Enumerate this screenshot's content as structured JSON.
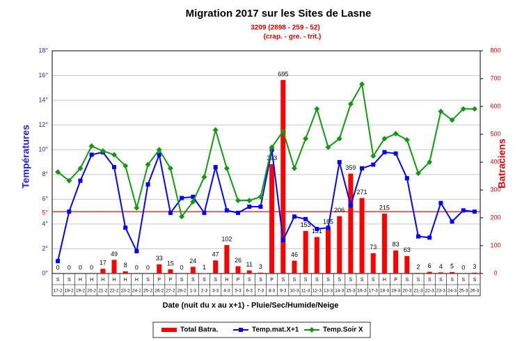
{
  "chart_data": {
    "type": "bar_line",
    "title": "Migration 2017 sur les Sites de Lasne",
    "subtitle": "3209 (2898 - 259 - 52)",
    "subtitle2": "(crap. -  gre. - trit.)",
    "y_label": "Températures",
    "y2_label": "Batraciens",
    "x_label": "Date (nuit du x au x+1) - Pluie/Sec/Humide/Neige",
    "categories": [
      "17-2",
      "18-2",
      "19-2",
      "20-2",
      "21-2",
      "22-2",
      "23-2",
      "24-2",
      "25-2",
      "26-2",
      "27-2",
      "28-2",
      "1-3",
      "2-3",
      "3-3",
      "4-3",
      "5-3",
      "6-3",
      "7-3",
      "8-3",
      "9-3",
      "10-3",
      "11-3",
      "12-3",
      "13-3",
      "14-3",
      "15-3",
      "16-3",
      "17-3",
      "18-3",
      "19-3",
      "20-3",
      "21-3",
      "22-3",
      "23-3",
      "24-3",
      "25-3",
      "26-3"
    ],
    "weather": [
      "S",
      "S",
      "H",
      "H",
      "H",
      "H",
      "H",
      "H",
      "S",
      "P",
      "P",
      "S",
      "S",
      "S",
      "S",
      "H",
      "P",
      "S",
      "S",
      "P",
      "S",
      "S",
      "S",
      "S",
      "S",
      "S",
      "S",
      "S",
      "S",
      "H",
      "P",
      "S",
      "S",
      "S",
      "S",
      "S",
      "S",
      "S"
    ],
    "series": [
      {
        "name": "Total Batra.",
        "kind": "bar",
        "axis": "y2",
        "color": "#ff0000",
        "values": [
          0,
          0,
          0,
          0,
          17,
          49,
          8,
          0,
          0,
          33,
          15,
          0,
          24,
          1,
          47,
          102,
          26,
          11,
          3,
          393,
          695,
          46,
          153,
          131,
          165,
          206,
          359,
          271,
          73,
          215,
          83,
          63,
          2,
          6,
          4,
          5,
          0,
          3
        ]
      },
      {
        "name": "Temp.mat.X+1",
        "kind": "line",
        "axis": "y",
        "color": "#0000ff",
        "marker": "square",
        "values": [
          1,
          5,
          7.5,
          9.6,
          9.8,
          8.6,
          3.7,
          1.8,
          7.2,
          9.6,
          4.9,
          6.1,
          6.2,
          4.9,
          8.6,
          5.1,
          4.9,
          5.4,
          5.4,
          10,
          2.7,
          4.6,
          4.4,
          3.6,
          3.7,
          9,
          5.5,
          8.5,
          8.8,
          9.8,
          9.7,
          7.7,
          3,
          2.9,
          5.7,
          4.2,
          5.1,
          5
        ]
      },
      {
        "name": "Temp.Soir X",
        "kind": "line",
        "axis": "y",
        "color": "#119911",
        "marker": "diamond",
        "values": [
          8.2,
          7.5,
          8.5,
          10.3,
          9.9,
          9.6,
          8.7,
          5.3,
          8.8,
          10,
          8.5,
          4.6,
          5.8,
          7.8,
          11.6,
          8.5,
          5.9,
          5.9,
          6.2,
          10.2,
          11.5,
          8.5,
          10.9,
          13.3,
          10.2,
          10.9,
          13.7,
          15.3,
          9.5,
          10.9,
          11.3,
          10.8,
          8.1,
          9,
          13.1,
          12.4,
          13.3,
          13.3
        ]
      }
    ],
    "ylim": [
      0,
      18
    ],
    "yticks": [
      {
        "value": 0,
        "label": "0°"
      },
      {
        "value": 2,
        "label": "2°"
      },
      {
        "value": 4,
        "label": "4°"
      },
      {
        "value": 6,
        "label": "6°"
      },
      {
        "value": 8,
        "label": "8°"
      },
      {
        "value": 10,
        "label": "10°"
      },
      {
        "value": 12,
        "label": "12°"
      },
      {
        "value": 14,
        "label": "14°"
      },
      {
        "value": 16,
        "label": "16°"
      },
      {
        "value": 18,
        "label": "18°"
      }
    ],
    "y2lim": [
      0,
      800
    ],
    "y2ticks": [
      0,
      100,
      200,
      300,
      400,
      500,
      600,
      700,
      800
    ],
    "ref_line": {
      "value": 5,
      "label": "5°",
      "color": "#ff0000"
    },
    "grid": true,
    "legend": "bottom"
  }
}
